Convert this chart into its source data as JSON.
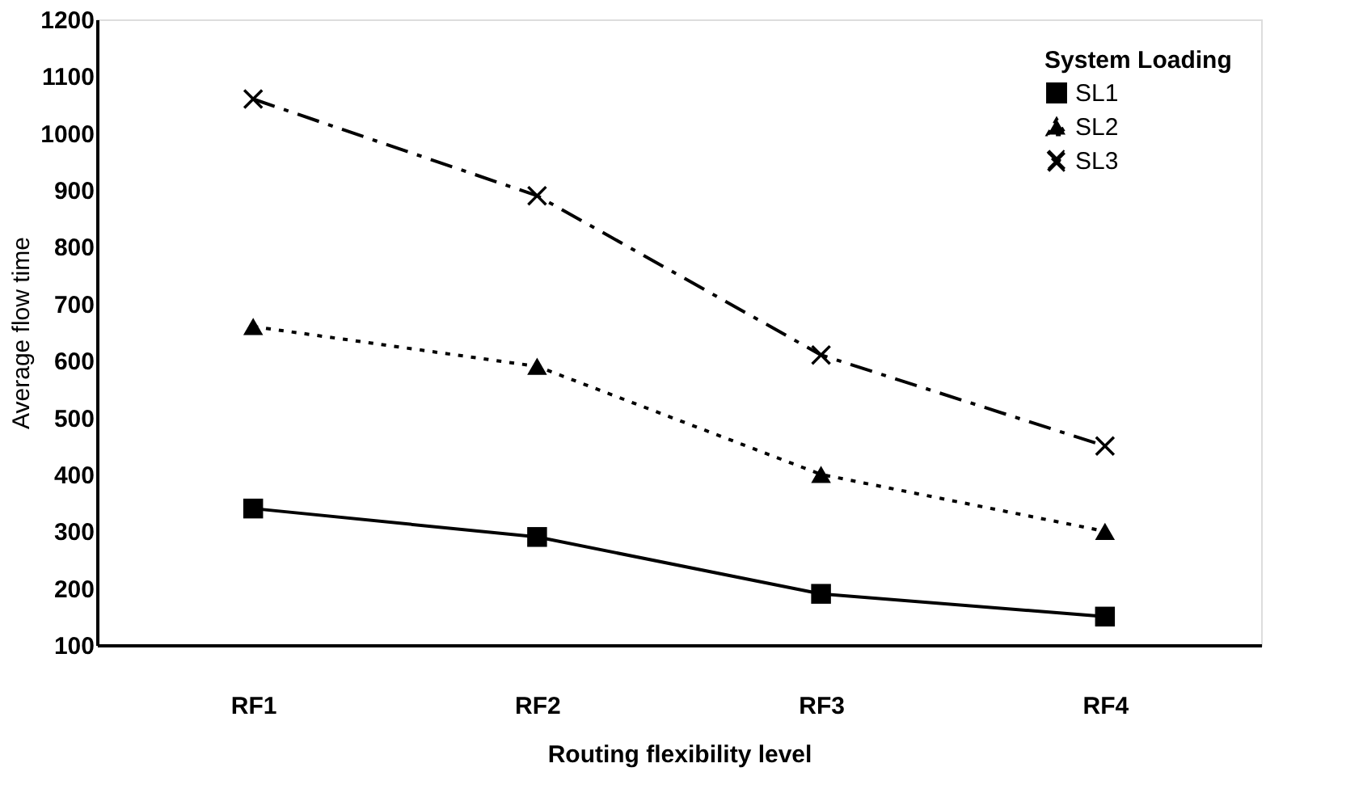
{
  "chart_data": {
    "type": "line",
    "xlabel": "Routing flexibility level",
    "ylabel": "Average flow time",
    "legend_title": "System Loading",
    "categories": [
      "RF1",
      "RF2",
      "RF3",
      "RF4"
    ],
    "series": [
      {
        "name": "SL1",
        "color": "#000000",
        "marker": "square",
        "line_style": "solid",
        "values": [
          340,
          290,
          190,
          150
        ]
      },
      {
        "name": "SL2",
        "color": "#000000",
        "marker": "triangle",
        "line_style": "dotted",
        "values": [
          660,
          590,
          400,
          300
        ]
      },
      {
        "name": "SL3",
        "color": "#000000",
        "marker": "cross",
        "line_style": "dashed",
        "values": [
          1060,
          890,
          610,
          450
        ]
      }
    ],
    "ylim": [
      100,
      1200
    ],
    "yticks": [
      100,
      200,
      300,
      400,
      500,
      600,
      700,
      800,
      900,
      1000,
      1100,
      1200
    ],
    "grid": false,
    "legend": "top right"
  }
}
